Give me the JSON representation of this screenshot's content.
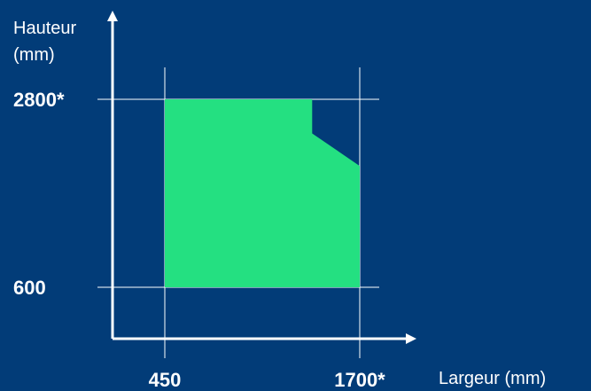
{
  "colors": {
    "background": "#023c78",
    "area": "#24e081",
    "axis": "#ffffff",
    "gridline": "#ffffff"
  },
  "chart_data": {
    "type": "area",
    "title": "",
    "ylabel_line1": "Hauteur",
    "ylabel_line2": "(mm)",
    "xlabel": "Largeur (mm)",
    "x_ticks": [
      {
        "value": 450,
        "label": "450"
      },
      {
        "value": 1700,
        "label": "1700*"
      }
    ],
    "y_ticks": [
      {
        "value": 600,
        "label": "600"
      },
      {
        "value": 2800,
        "label": "2800*"
      }
    ],
    "region": [
      {
        "x": 450,
        "y": 600
      },
      {
        "x": 450,
        "y": 2800
      },
      {
        "x": 1395,
        "y": 2800
      },
      {
        "x": 1395,
        "y": 2400
      },
      {
        "x": 1700,
        "y": 2020
      },
      {
        "x": 1700,
        "y": 600
      }
    ],
    "grid": true
  }
}
